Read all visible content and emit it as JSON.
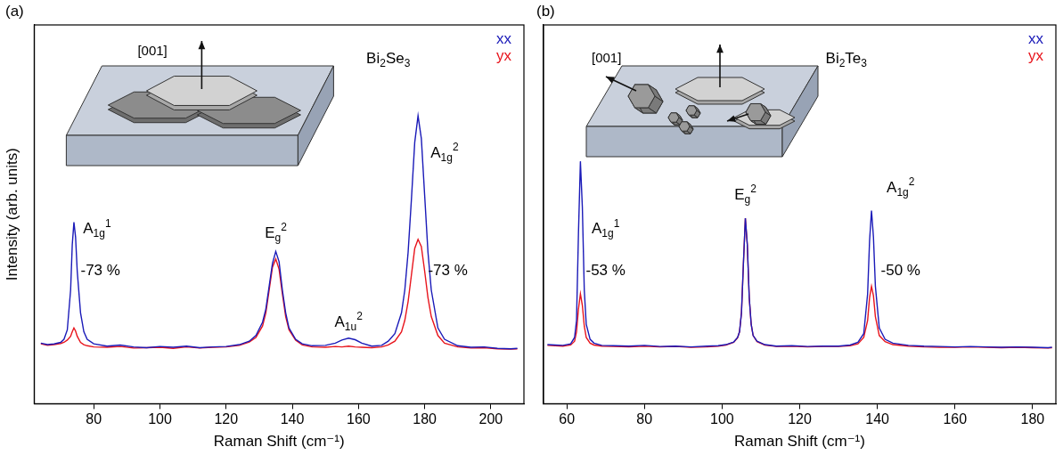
{
  "chart_data": [
    {
      "type": "line",
      "title": "(a)",
      "xlabel": "Raman Shift (cm⁻¹)",
      "ylabel": "Intensity (arb. units)",
      "xlim": [
        62,
        210
      ],
      "xticks": [
        80,
        100,
        120,
        140,
        160,
        180,
        200
      ],
      "ylim": [
        0,
        100
      ],
      "grid": false,
      "tick_labels": "x",
      "legend": "top-right",
      "inset_label": "[001]",
      "x": [
        64,
        66,
        68,
        70,
        71,
        72,
        73,
        73.5,
        74,
        74.5,
        75,
        76,
        77,
        78,
        80,
        84,
        88,
        92,
        96,
        100,
        104,
        108,
        112,
        116,
        120,
        124,
        127,
        129,
        131,
        132,
        133,
        134,
        135,
        136,
        137,
        138,
        139,
        141,
        143,
        146,
        150,
        153,
        155,
        157,
        159,
        161,
        164,
        167,
        169,
        171,
        173,
        174,
        175,
        176,
        177,
        178,
        179,
        180,
        181,
        182,
        184,
        186,
        190,
        194,
        198,
        202,
        206,
        208
      ],
      "series": [
        {
          "name": "xx",
          "color": "#1a1ab8",
          "values": [
            16.0,
            15.6,
            15.8,
            16.2,
            17.0,
            19.5,
            30,
            42,
            47.9,
            44,
            35,
            24,
            19,
            17,
            15.8,
            15.2,
            15.5,
            15.0,
            14.8,
            15.1,
            14.9,
            15.2,
            14.8,
            15.0,
            15.1,
            15.6,
            16.5,
            18,
            21.5,
            25,
            31,
            37,
            40.2,
            37.5,
            30,
            24,
            20,
            17,
            15.8,
            15.3,
            15.4,
            16,
            16.8,
            17.3,
            16.9,
            16,
            15.2,
            15.4,
            16.5,
            18.5,
            24,
            30,
            40,
            54,
            69,
            76,
            70,
            55,
            40,
            30,
            20,
            17,
            15.3,
            14.9,
            15.0,
            14.6,
            14.5,
            14.6
          ]
        },
        {
          "name": "yx",
          "color": "#e8141c",
          "values": [
            15.8,
            15.4,
            15.6,
            15.9,
            16.2,
            16.8,
            17.8,
            19,
            20,
            19.2,
            17.8,
            16.2,
            15.6,
            15.3,
            15.0,
            14.9,
            15.1,
            14.7,
            14.8,
            14.9,
            14.6,
            15.0,
            14.7,
            14.9,
            15.0,
            15.4,
            16.3,
            17.5,
            20.5,
            24,
            30,
            36,
            38.2,
            35.5,
            29,
            23,
            19.5,
            16.8,
            15.5,
            15.0,
            14.9,
            15.1,
            15.0,
            15.2,
            15.0,
            14.9,
            14.8,
            15.0,
            15.5,
            16.5,
            19,
            22,
            27,
            34,
            41,
            43.4,
            41.5,
            35,
            28,
            23,
            18,
            16,
            15.0,
            14.7,
            14.8,
            14.5,
            14.4,
            14.5
          ]
        }
      ],
      "annotations": [
        {
          "parts": [
            {
              "text": "Bi"
            },
            {
              "sub": "2"
            },
            {
              "text": "Se"
            },
            {
              "sub": "3"
            }
          ],
          "x": 169,
          "y": 91
        },
        {
          "parts": [
            {
              "text": "A"
            },
            {
              "sub": "1g"
            },
            {
              "sup": "1"
            }
          ],
          "x": 81,
          "y": 46
        },
        {
          "parts": [
            {
              "text": "-73 %"
            }
          ],
          "x": 82,
          "y": 35
        },
        {
          "parts": [
            {
              "text": "E"
            },
            {
              "sub": "g"
            },
            {
              "sup": "2"
            }
          ],
          "x": 135,
          "y": 45
        },
        {
          "parts": [
            {
              "text": "A"
            },
            {
              "sub": "1u"
            },
            {
              "sup": "2"
            }
          ],
          "x": 157,
          "y": 21.5
        },
        {
          "parts": [
            {
              "text": "A"
            },
            {
              "sub": "1g"
            },
            {
              "sup": "2"
            }
          ],
          "x": 186,
          "y": 66
        },
        {
          "parts": [
            {
              "text": "-73 %"
            }
          ],
          "x": 187,
          "y": 35
        }
      ]
    },
    {
      "type": "line",
      "title": "(b)",
      "xlabel": "Raman Shift (cm⁻¹)",
      "xlim": [
        54,
        186
      ],
      "xticks": [
        60,
        80,
        100,
        120,
        140,
        160,
        180
      ],
      "ylim": [
        0,
        100
      ],
      "grid": false,
      "tick_labels": "x",
      "legend": "top-right",
      "inset_label": "[001]",
      "x": [
        55,
        57,
        59,
        61,
        62,
        62.5,
        63,
        63.5,
        64,
        64.5,
        65,
        66,
        67,
        69,
        72,
        76,
        80,
        84,
        88,
        92,
        96,
        99,
        101,
        103,
        104,
        104.5,
        105,
        105.5,
        106,
        106.5,
        107,
        107.5,
        108,
        109,
        111,
        114,
        118,
        122,
        126,
        130,
        133,
        135,
        136.5,
        137.5,
        138,
        138.5,
        139,
        139.5,
        140.5,
        142,
        144,
        148,
        152,
        156,
        160,
        164,
        168,
        172,
        176,
        180,
        184,
        185
      ],
      "series": [
        {
          "name": "xx",
          "color": "#1a1ab8",
          "values": [
            15.6,
            15.5,
            15.4,
            15.8,
            17.5,
            22,
            45,
            64,
            52,
            30,
            21,
            17,
            16,
            15.4,
            15.3,
            15.2,
            15.4,
            15.1,
            15.2,
            15.0,
            15.2,
            15.3,
            15.6,
            16.3,
            17.5,
            19,
            24,
            37,
            49,
            42,
            28,
            21,
            18,
            16.5,
            15.6,
            15.2,
            15.3,
            15.1,
            15.2,
            15.2,
            15.5,
            16.2,
            18.5,
            29,
            43,
            51,
            44,
            31,
            20,
            17,
            16,
            15.4,
            15.2,
            15.1,
            15.0,
            15.1,
            15.0,
            14.9,
            15.0,
            14.9,
            14.8,
            14.9
          ]
        },
        {
          "name": "yx",
          "color": "#e8141c",
          "values": [
            15.4,
            15.3,
            15.2,
            15.5,
            16.5,
            19,
            25,
            29,
            26,
            20.5,
            17.5,
            16,
            15.5,
            15.2,
            15.1,
            15.0,
            15.2,
            15.0,
            15.1,
            14.9,
            15.0,
            15.2,
            15.5,
            16.2,
            17.4,
            19,
            24,
            37,
            49,
            42,
            28,
            21,
            18,
            16.4,
            15.5,
            15.1,
            15.2,
            15.0,
            15.1,
            15.1,
            15.3,
            15.8,
            17.5,
            22,
            28,
            31,
            28.5,
            23,
            18,
            16.4,
            15.6,
            15.2,
            15.0,
            14.9,
            14.9,
            15.0,
            14.9,
            14.8,
            14.9,
            14.8,
            14.7,
            14.8
          ]
        }
      ],
      "annotations": [
        {
          "parts": [
            {
              "text": "Bi"
            },
            {
              "sub": "2"
            },
            {
              "text": "Te"
            },
            {
              "sub": "3"
            }
          ],
          "x": 132,
          "y": 91
        },
        {
          "parts": [
            {
              "text": "A"
            },
            {
              "sub": "1g"
            },
            {
              "sup": "1"
            }
          ],
          "x": 70,
          "y": 46
        },
        {
          "parts": [
            {
              "text": "-53 %"
            }
          ],
          "x": 70,
          "y": 35
        },
        {
          "parts": [
            {
              "text": "E"
            },
            {
              "sub": "g"
            },
            {
              "sup": "2"
            }
          ],
          "x": 106,
          "y": 55
        },
        {
          "parts": [
            {
              "text": "A"
            },
            {
              "sub": "1g"
            },
            {
              "sup": "2"
            }
          ],
          "x": 146,
          "y": 57
        },
        {
          "parts": [
            {
              "text": "-50 %"
            }
          ],
          "x": 146,
          "y": 35
        }
      ]
    }
  ]
}
